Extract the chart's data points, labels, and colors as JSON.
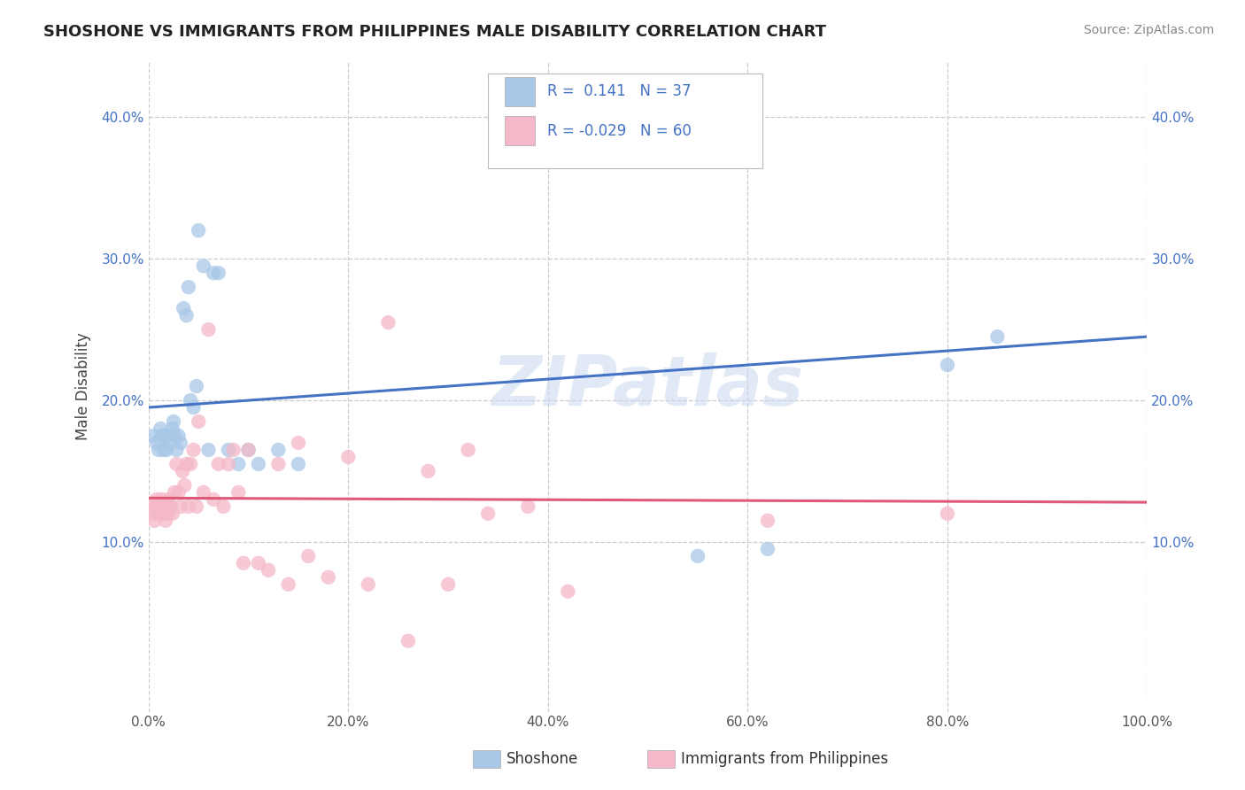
{
  "title": "SHOSHONE VS IMMIGRANTS FROM PHILIPPINES MALE DISABILITY CORRELATION CHART",
  "source_text": "Source: ZipAtlas.com",
  "ylabel": "Male Disability",
  "background_color": "#ffffff",
  "grid_color": "#cccccc",
  "xlim": [
    0,
    1.0
  ],
  "ylim": [
    -0.02,
    0.44
  ],
  "xticks": [
    0.0,
    0.2,
    0.4,
    0.6,
    0.8,
    1.0
  ],
  "xtick_labels": [
    "0.0%",
    "20.0%",
    "40.0%",
    "60.0%",
    "80.0%",
    "100.0%"
  ],
  "yticks": [
    0.1,
    0.2,
    0.3,
    0.4
  ],
  "ytick_labels": [
    "10.0%",
    "20.0%",
    "30.0%",
    "40.0%"
  ],
  "shoshone_color": "#a8c8e8",
  "philippines_color": "#f4b8c8",
  "shoshone_line_color": "#4472c4",
  "philippines_line_color": "#e05878",
  "shoshone_R": 0.141,
  "shoshone_N": 37,
  "philippines_R": -0.029,
  "philippines_N": 60,
  "watermark": "ZIPatlas",
  "shoshone_x": [
    0.005,
    0.008,
    0.01,
    0.012,
    0.013,
    0.015,
    0.016,
    0.018,
    0.02,
    0.022,
    0.024,
    0.025,
    0.026,
    0.028,
    0.03,
    0.032,
    0.035,
    0.038,
    0.04,
    0.042,
    0.045,
    0.048,
    0.05,
    0.055,
    0.06,
    0.065,
    0.07,
    0.08,
    0.09,
    0.1,
    0.11,
    0.13,
    0.15,
    0.55,
    0.62,
    0.8,
    0.85
  ],
  "shoshone_y": [
    0.175,
    0.17,
    0.165,
    0.18,
    0.175,
    0.165,
    0.175,
    0.165,
    0.175,
    0.17,
    0.18,
    0.185,
    0.175,
    0.165,
    0.175,
    0.17,
    0.265,
    0.26,
    0.28,
    0.2,
    0.195,
    0.21,
    0.32,
    0.295,
    0.165,
    0.29,
    0.29,
    0.165,
    0.155,
    0.165,
    0.155,
    0.165,
    0.155,
    0.09,
    0.095,
    0.225,
    0.245
  ],
  "philippines_x": [
    0.003,
    0.005,
    0.006,
    0.007,
    0.008,
    0.009,
    0.01,
    0.011,
    0.012,
    0.013,
    0.014,
    0.015,
    0.016,
    0.017,
    0.018,
    0.019,
    0.02,
    0.022,
    0.024,
    0.026,
    0.028,
    0.03,
    0.032,
    0.034,
    0.036,
    0.038,
    0.04,
    0.042,
    0.045,
    0.048,
    0.05,
    0.055,
    0.06,
    0.065,
    0.07,
    0.075,
    0.08,
    0.085,
    0.09,
    0.095,
    0.1,
    0.11,
    0.12,
    0.13,
    0.14,
    0.15,
    0.16,
    0.18,
    0.2,
    0.22,
    0.24,
    0.26,
    0.28,
    0.3,
    0.32,
    0.34,
    0.38,
    0.42,
    0.62,
    0.8
  ],
  "philippines_y": [
    0.125,
    0.12,
    0.115,
    0.125,
    0.13,
    0.12,
    0.125,
    0.12,
    0.125,
    0.13,
    0.12,
    0.125,
    0.12,
    0.115,
    0.125,
    0.12,
    0.13,
    0.125,
    0.12,
    0.135,
    0.155,
    0.135,
    0.125,
    0.15,
    0.14,
    0.155,
    0.125,
    0.155,
    0.165,
    0.125,
    0.185,
    0.135,
    0.25,
    0.13,
    0.155,
    0.125,
    0.155,
    0.165,
    0.135,
    0.085,
    0.165,
    0.085,
    0.08,
    0.155,
    0.07,
    0.17,
    0.09,
    0.075,
    0.16,
    0.07,
    0.255,
    0.03,
    0.15,
    0.07,
    0.165,
    0.12,
    0.125,
    0.065,
    0.115,
    0.12
  ]
}
